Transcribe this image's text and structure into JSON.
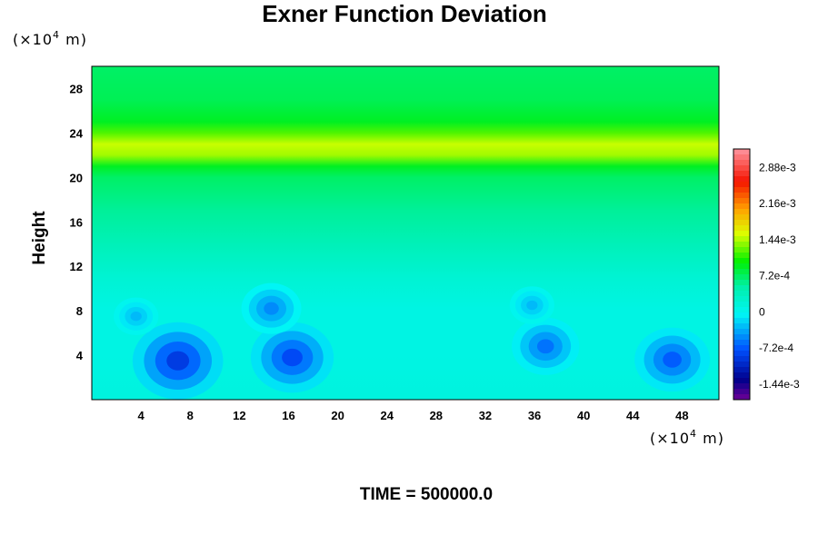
{
  "chart_data": {
    "type": "heatmap",
    "title": "Exner Function Deviation",
    "ylabel": "Height",
    "x_unit": "(×10",
    "x_unit_exp": "4",
    "x_unit_tail": " m)",
    "y_unit": "(×10",
    "y_unit_exp": "4",
    "y_unit_tail": " m)",
    "time_label": "TIME = 500000.0",
    "xlim": [
      0,
      51
    ],
    "ylim": [
      0,
      30
    ],
    "x_ticks": [
      "4",
      "8",
      "12",
      "16",
      "20",
      "24",
      "28",
      "32",
      "36",
      "40",
      "44",
      "48"
    ],
    "y_ticks": [
      "4",
      "8",
      "12",
      "16",
      "20",
      "24",
      "28"
    ],
    "colorbar": {
      "range": [
        -0.00175,
        0.00325
      ],
      "labels": [
        "2.88e-3",
        "2.16e-3",
        "1.44e-3",
        "7.2e-4",
        "0",
        "-7.2e-4",
        "-1.44e-3"
      ],
      "label_values": [
        0.00288,
        0.00216,
        0.00144,
        0.00072,
        0.0,
        -0.00072,
        -0.00144
      ]
    },
    "vertical_profile": [
      {
        "height": 0,
        "value": 0.00012
      },
      {
        "height": 4,
        "value": 8e-05
      },
      {
        "height": 8,
        "value": 8e-05
      },
      {
        "height": 11,
        "value": 0.0002
      },
      {
        "height": 14,
        "value": 0.0004
      },
      {
        "height": 17,
        "value": 0.00055
      },
      {
        "height": 20,
        "value": 0.0007
      },
      {
        "height": 21,
        "value": 0.0009
      },
      {
        "height": 22,
        "value": 0.0014
      },
      {
        "height": 23,
        "value": 0.0015
      },
      {
        "height": 24,
        "value": 0.0012
      },
      {
        "height": 25,
        "value": 0.0009
      },
      {
        "height": 27,
        "value": 0.00075
      },
      {
        "height": 30,
        "value": 0.0007
      }
    ],
    "anomalies": [
      {
        "x": 7,
        "y": 3.5,
        "value": -0.0009
      },
      {
        "x": 16.3,
        "y": 3.8,
        "value": -0.0008
      },
      {
        "x": 36.9,
        "y": 4.8,
        "value": -0.0006
      },
      {
        "x": 47.2,
        "y": 3.6,
        "value": -0.0007
      },
      {
        "x": 3.6,
        "y": 7.5,
        "value": -0.0003
      },
      {
        "x": 14.6,
        "y": 8.2,
        "value": -0.0005
      },
      {
        "x": 35.8,
        "y": 8.5,
        "value": -0.0003
      }
    ]
  }
}
